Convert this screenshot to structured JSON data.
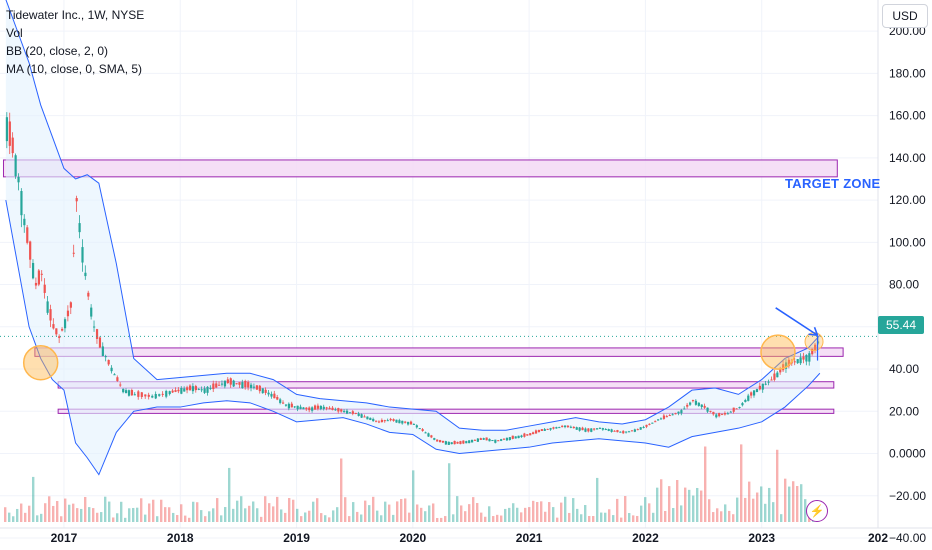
{
  "header": {
    "symbol": "Tidewater Inc., 1W, NYSE",
    "indicators": [
      "Vol",
      "BB (20, close, 2, 0)",
      "MA (10, close, 0, SMA, 5)"
    ],
    "currency": "USD"
  },
  "price_tag": "55.44",
  "annotation": "TARGET ZONE",
  "colors": {
    "up": "#26a69a",
    "down": "#ef5350",
    "band": "#2962ff",
    "band_fill": "#e3f2fd",
    "zone_fill": "#f3d9f5",
    "zone_stroke": "#9c27b0",
    "circle": "#ffb74d",
    "accent": "#2962ff"
  },
  "chart_data": {
    "type": "line",
    "x_ticks": [
      "2017",
      "2018",
      "2019",
      "2020",
      "2021",
      "2022",
      "2023",
      "202"
    ],
    "y_ticks": [
      "200.00",
      "180.00",
      "160.00",
      "140.00",
      "120.00",
      "100.00",
      "80.00",
      "60.00",
      "40.00",
      "20.00",
      "0.0000",
      "−20.00",
      "−40.00"
    ],
    "ylim": [
      -40,
      210
    ],
    "xlim": [
      2016.45,
      2024.0
    ],
    "last_price": 55.44,
    "zones": [
      {
        "label": "TARGET ZONE",
        "from_year": 2016.48,
        "to_year": 2023.65,
        "low": 131,
        "high": 139
      },
      {
        "from_year": 2016.75,
        "to_year": 2023.7,
        "low": 46,
        "high": 50
      },
      {
        "from_year": 2016.95,
        "to_year": 2023.62,
        "low": 31,
        "high": 34
      },
      {
        "from_year": 2016.95,
        "to_year": 2023.62,
        "low": 19,
        "high": 21
      }
    ],
    "series": [
      {
        "name": "Price",
        "x": [
          2016.5,
          2016.55,
          2016.6,
          2016.65,
          2016.7,
          2016.75,
          2016.8,
          2016.85,
          2016.9,
          2016.95,
          2017.0,
          2017.05,
          2017.1,
          2017.15,
          2017.2,
          2017.25,
          2017.3,
          2017.4,
          2017.5,
          2017.6,
          2017.75,
          2017.9,
          2018.0,
          2018.1,
          2018.2,
          2018.3,
          2018.4,
          2018.5,
          2018.6,
          2018.7,
          2018.8,
          2018.9,
          2019.0,
          2019.1,
          2019.2,
          2019.3,
          2019.4,
          2019.5,
          2019.6,
          2019.7,
          2019.8,
          2019.9,
          2020.0,
          2020.1,
          2020.2,
          2020.3,
          2020.4,
          2020.5,
          2020.6,
          2020.7,
          2020.8,
          2020.9,
          2021.0,
          2021.1,
          2021.2,
          2021.3,
          2021.4,
          2021.5,
          2021.6,
          2021.7,
          2021.8,
          2021.9,
          2022.0,
          2022.1,
          2022.2,
          2022.3,
          2022.4,
          2022.5,
          2022.6,
          2022.7,
          2022.8,
          2022.9,
          2023.0,
          2023.1,
          2023.2,
          2023.3,
          2023.4,
          2023.45,
          2023.5
        ],
        "y": [
          155,
          145,
          130,
          110,
          95,
          80,
          85,
          70,
          60,
          55,
          62,
          70,
          120,
          95,
          75,
          60,
          52,
          40,
          30,
          28,
          27,
          29,
          30,
          31,
          30,
          32,
          34,
          33,
          32,
          30,
          27,
          23,
          22,
          21,
          22,
          21,
          20,
          19,
          17,
          15,
          16,
          15,
          14,
          10,
          6,
          5,
          5,
          6,
          7,
          6,
          7,
          8,
          9,
          11,
          12,
          13,
          12,
          11,
          12,
          11,
          10,
          11,
          13,
          16,
          18,
          20,
          25,
          22,
          18,
          19,
          22,
          28,
          32,
          36,
          42,
          44,
          46,
          50,
          55.44
        ]
      },
      {
        "name": "BB upper",
        "x": [
          2016.5,
          2016.6,
          2016.7,
          2016.8,
          2016.9,
          2017.0,
          2017.1,
          2017.2,
          2017.3,
          2017.45,
          2017.6,
          2017.8,
          2018.0,
          2018.2,
          2018.4,
          2018.6,
          2018.8,
          2019.0,
          2019.2,
          2019.4,
          2019.6,
          2019.8,
          2020.0,
          2020.2,
          2020.4,
          2020.6,
          2020.8,
          2021.0,
          2021.2,
          2021.4,
          2021.6,
          2021.8,
          2022.0,
          2022.2,
          2022.4,
          2022.6,
          2022.8,
          2023.0,
          2023.2,
          2023.4,
          2023.5
        ],
        "y": [
          215,
          200,
          185,
          165,
          150,
          135,
          130,
          132,
          128,
          90,
          45,
          35,
          36,
          37,
          38,
          38,
          35,
          28,
          26,
          25,
          24,
          22,
          21,
          20,
          12,
          11,
          11,
          13,
          15,
          17,
          15,
          14,
          16,
          22,
          30,
          31,
          28,
          35,
          45,
          50,
          56
        ]
      },
      {
        "name": "BB lower",
        "x": [
          2016.5,
          2016.6,
          2016.7,
          2016.8,
          2016.9,
          2017.0,
          2017.1,
          2017.2,
          2017.3,
          2017.45,
          2017.6,
          2017.8,
          2018.0,
          2018.2,
          2018.4,
          2018.6,
          2018.8,
          2019.0,
          2019.2,
          2019.4,
          2019.6,
          2019.8,
          2020.0,
          2020.2,
          2020.4,
          2020.6,
          2020.8,
          2021.0,
          2021.2,
          2021.4,
          2021.6,
          2021.8,
          2022.0,
          2022.2,
          2022.4,
          2022.6,
          2022.8,
          2023.0,
          2023.2,
          2023.4,
          2023.5
        ],
        "y": [
          120,
          90,
          60,
          45,
          35,
          30,
          5,
          -2,
          -10,
          10,
          20,
          22,
          22,
          24,
          25,
          24,
          20,
          15,
          16,
          17,
          14,
          10,
          9,
          2,
          0,
          1,
          2,
          3,
          5,
          6,
          7,
          6,
          5,
          3,
          8,
          10,
          12,
          15,
          22,
          32,
          38
        ]
      }
    ],
    "volume_hint": "histogram bars at bottom, scale not labeled"
  }
}
